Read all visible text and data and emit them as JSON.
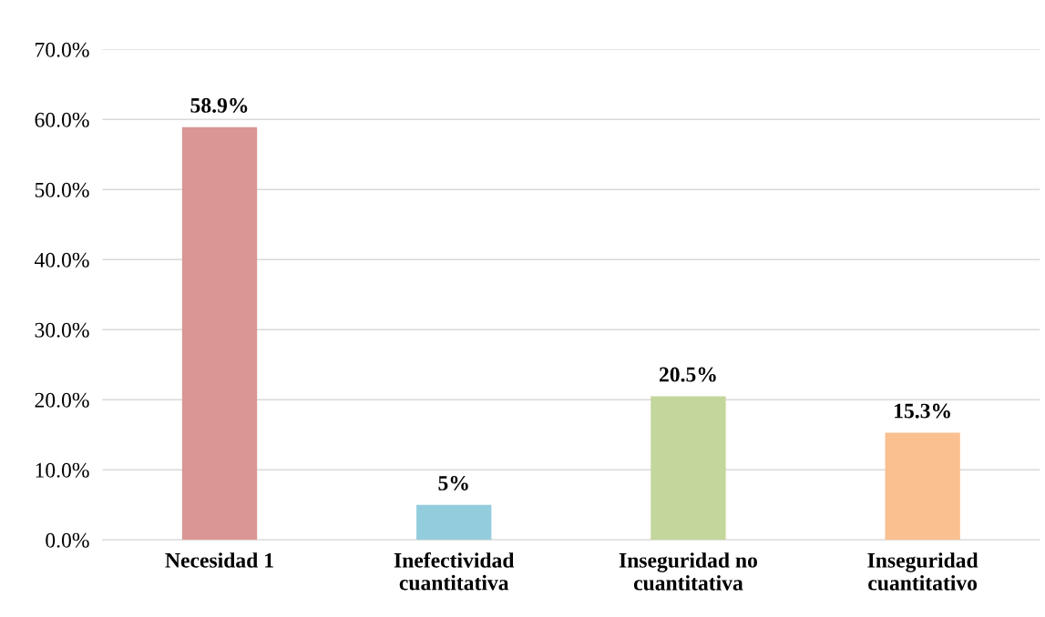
{
  "chart_data": {
    "type": "bar",
    "categories": [
      "Necesidad 1",
      "Inefectividad\ncuantitativa",
      "Inseguridad no\ncuantitativa",
      "Inseguridad\ncuantitativo"
    ],
    "values": [
      58.9,
      5,
      20.5,
      15.3
    ],
    "colors": [
      "#d99694",
      "#93cddd",
      "#c3d69b",
      "#fac090"
    ],
    "value_labels": [
      "58.9%",
      "5%",
      "20.5%",
      "15.3%"
    ],
    "ylim": [
      0,
      70
    ],
    "yticks": [
      {
        "value": 0,
        "label": "0.0%"
      },
      {
        "value": 10,
        "label": "10.0%"
      },
      {
        "value": 20,
        "label": "20.0%"
      },
      {
        "value": 30,
        "label": "30.0%"
      },
      {
        "value": 40,
        "label": "40.0%"
      },
      {
        "value": 50,
        "label": "50.0%"
      },
      {
        "value": 60,
        "label": "60.0%"
      },
      {
        "value": 70,
        "label": "70.0%"
      }
    ],
    "grid": "y",
    "legend": false
  }
}
